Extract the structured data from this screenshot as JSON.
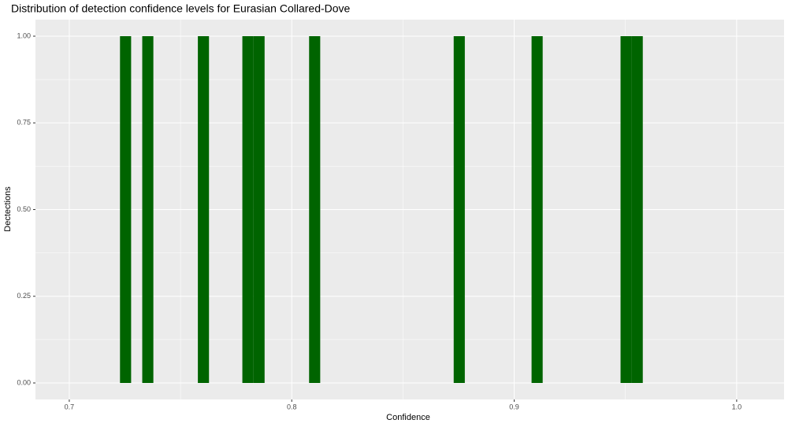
{
  "chart_data": {
    "type": "histogram",
    "title": "Distribution of detection confidence levels for Eurasian Collared-Dove",
    "x_label": "Confidence",
    "y_label": "Dectections",
    "color": "#006400",
    "grid": true,
    "bins": [
      0.7228,
      0.7278,
      0.7328,
      0.7378,
      0.7428,
      0.7478,
      0.7528,
      0.7578,
      0.7628,
      0.7678,
      0.7728,
      0.7778,
      0.7828,
      0.7878,
      0.7928,
      0.7978,
      0.8028,
      0.8078,
      0.8128,
      0.8178,
      0.8228,
      0.8278,
      0.8328,
      0.8378,
      0.8428,
      0.8478,
      0.8528,
      0.8578,
      0.8628,
      0.8678,
      0.8728,
      0.8778,
      0.8828,
      0.8878,
      0.8928,
      0.8978,
      0.9028,
      0.9078,
      0.9128,
      0.9178,
      0.9228,
      0.9278,
      0.9328,
      0.9378,
      0.9428,
      0.9478,
      0.9528,
      0.9578
    ],
    "values": [
      1,
      0,
      1,
      0,
      0,
      0,
      0,
      1,
      0,
      0,
      0,
      1,
      1,
      0,
      0,
      0,
      0,
      1,
      0,
      0,
      0,
      0,
      0,
      0,
      0,
      0,
      0,
      0,
      0,
      0,
      1,
      0,
      0,
      0,
      0,
      0,
      0,
      1,
      0,
      0,
      0,
      0,
      0,
      0,
      0,
      1,
      1
    ],
    "xlim": [
      0.6848,
      1.0213
    ],
    "ylim": [
      -0.0476,
      1.0476
    ],
    "xticks": [
      0.7,
      0.8,
      0.9,
      {
        "value": 1.0,
        "label": "1.0"
      }
    ],
    "yticks": [
      {
        "value": 0,
        "label": "0.00"
      },
      {
        "value": 0.25,
        "label": "0.25"
      },
      {
        "value": 0.5,
        "label": "0.50"
      },
      {
        "value": 0.75,
        "label": "0.75"
      },
      {
        "value": 1,
        "label": "1.00"
      }
    ]
  }
}
